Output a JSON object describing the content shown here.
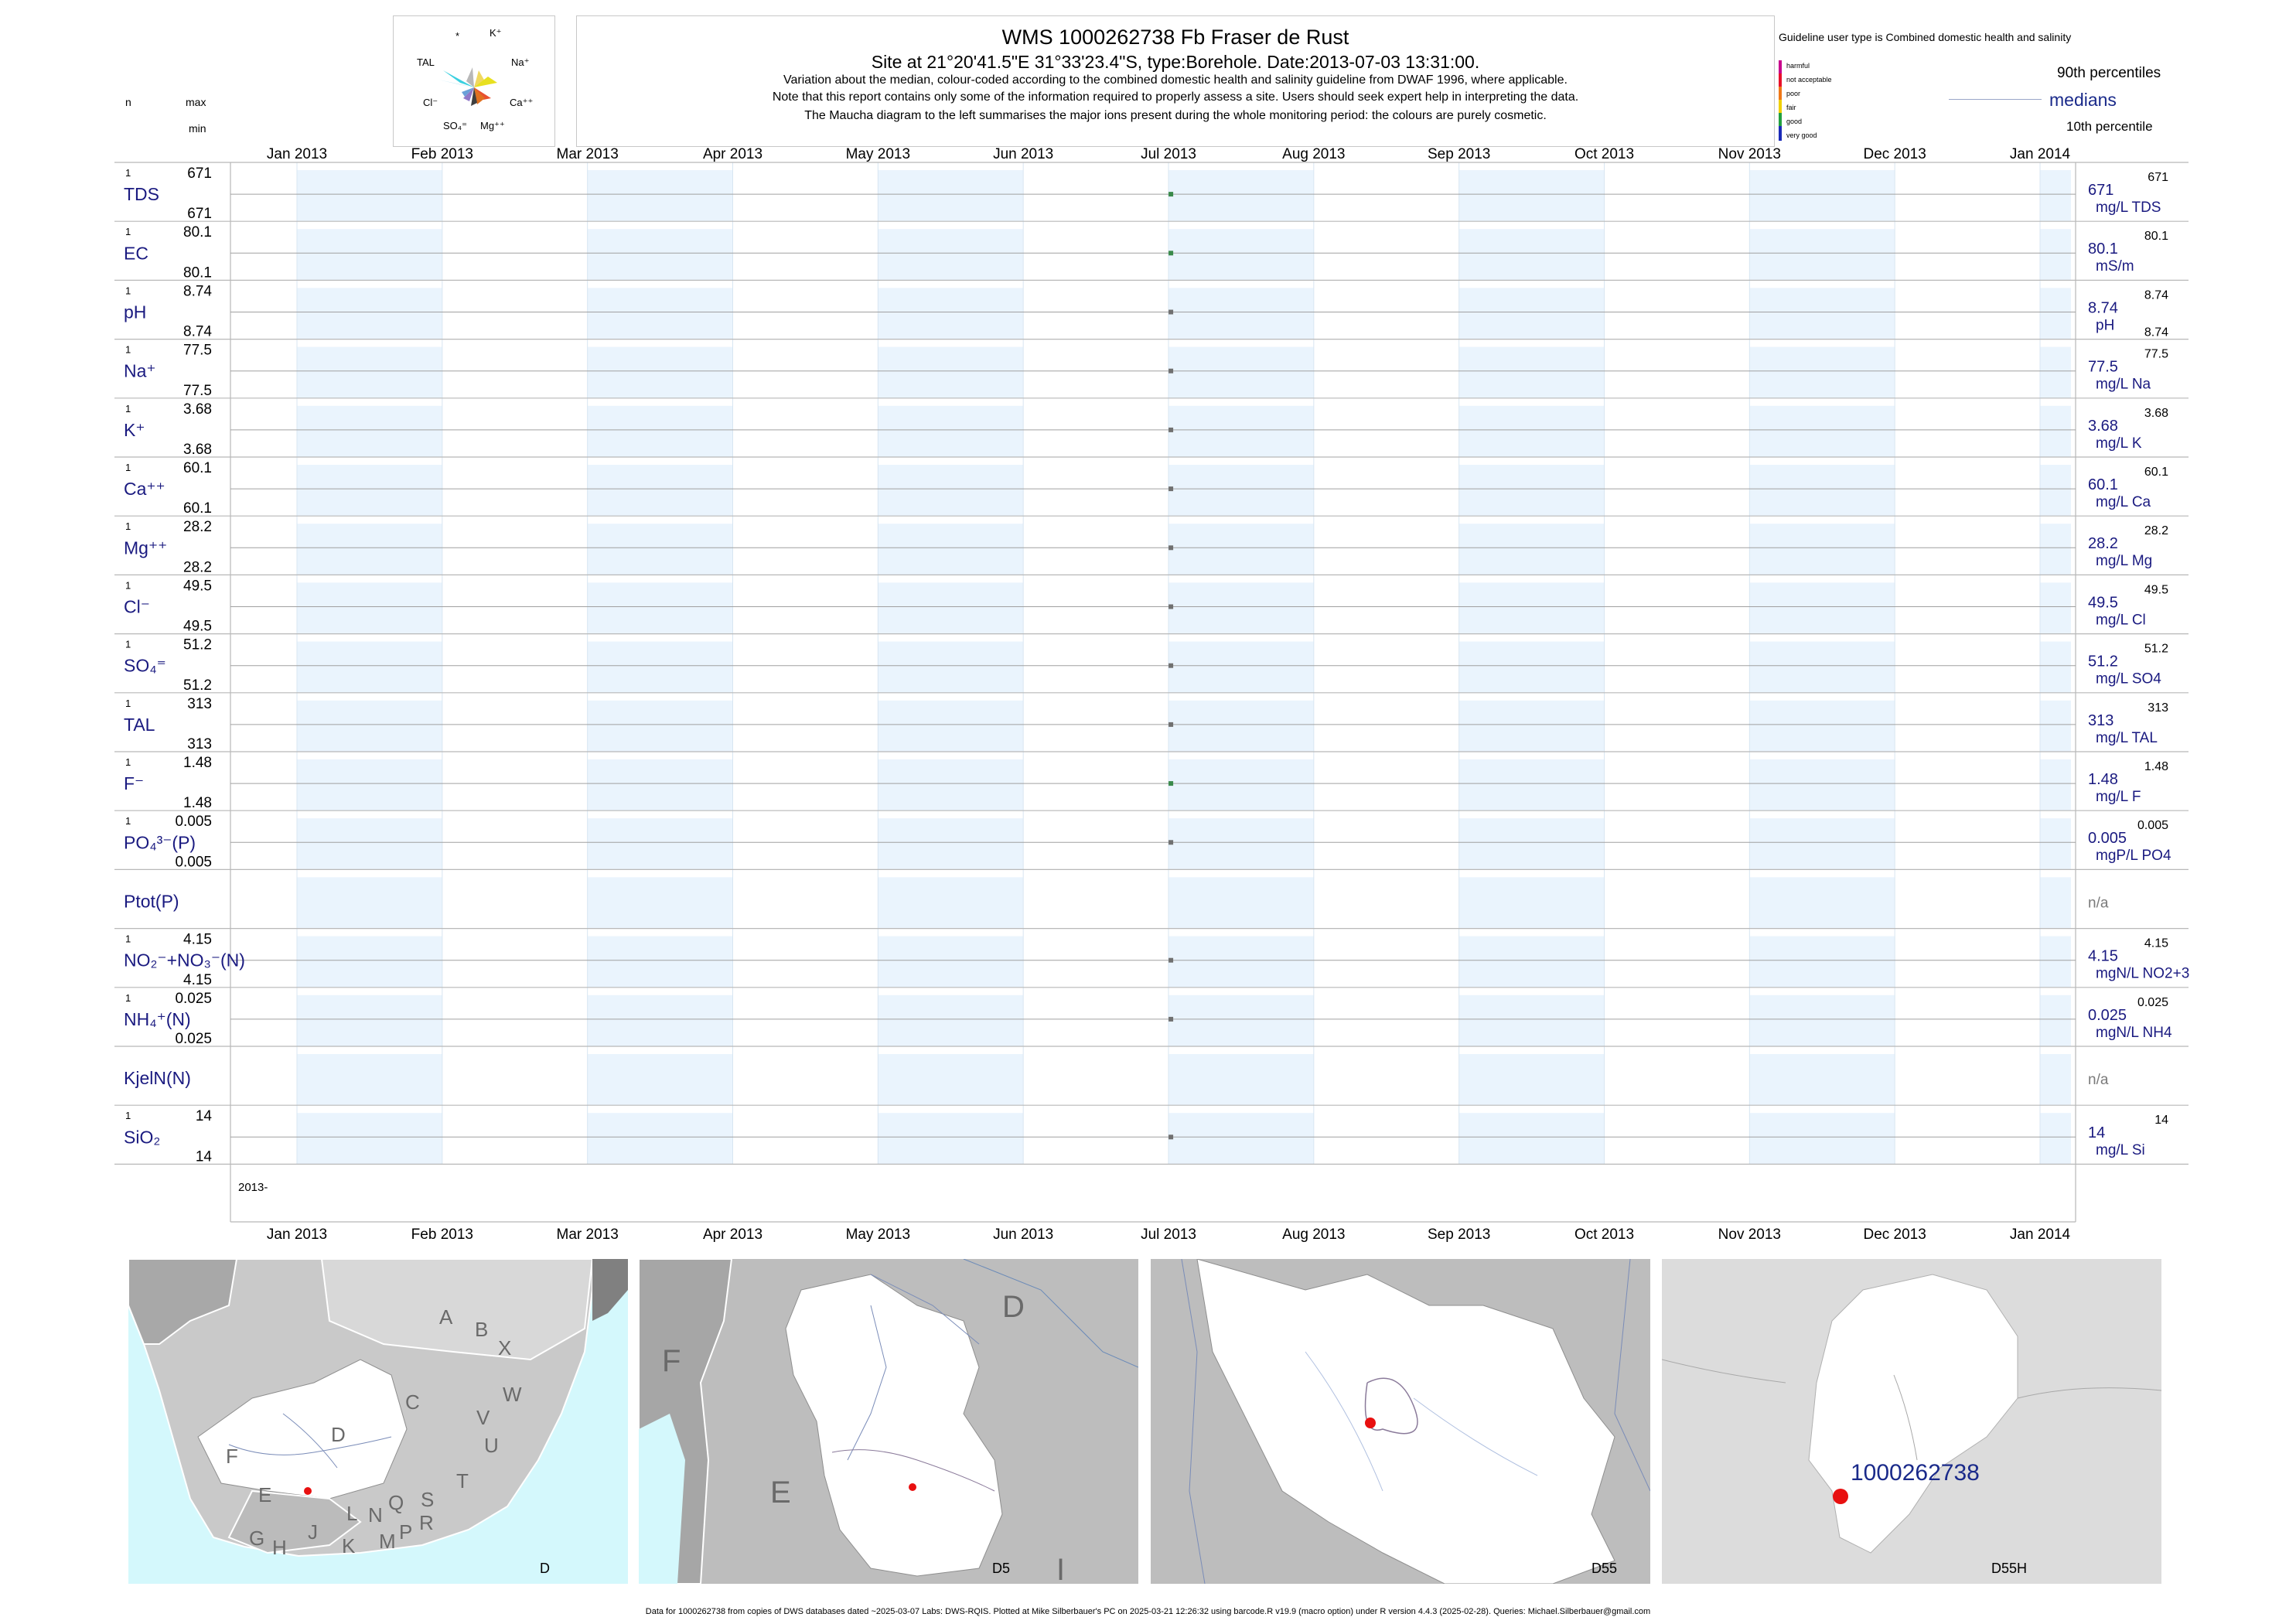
{
  "header": {
    "title": "WMS 1000262738  Fb Fraser de Rust",
    "subtitle": "Site at 21°20'41.5\"E 31°33'23.4\"S, type:Borehole. Date:2013-07-03 13:31:00.",
    "note1": "Variation about the median,  colour-coded according to the combined domestic health and salinity guideline from DWAF 1996, where applicable.",
    "note2": "Note that this report contains only some of the information required to properly assess a site. Users should seek expert help in interpreting the data.",
    "note3": "The Maucha diagram to the left summarises the major ions present during the whole monitoring period: the colours are purely cosmetic."
  },
  "left_header": {
    "n": "n",
    "max": "max",
    "min": "min"
  },
  "maucha": {
    "labels": [
      "*",
      "K⁺",
      "TAL",
      "Na⁺",
      "Cl⁻",
      "Ca⁺⁺",
      "SO₄⁼",
      "Mg⁺⁺"
    ]
  },
  "legend": {
    "guideline": "Guideline user type is Combined domestic health and salinity",
    "classes": [
      "harmful",
      "not acceptable",
      "poor",
      "fair",
      "good",
      "very good"
    ],
    "class_colors": [
      "#c8008c",
      "#e8102a",
      "#f07818",
      "#f0d000",
      "#22a040",
      "#1a2ab8"
    ],
    "p90": "90th percentiles",
    "medians": "medians",
    "p10": "10th percentile"
  },
  "chart_data": {
    "type": "scatter",
    "x_axis_ticks": [
      "Jan 2013",
      "Feb 2013",
      "Mar 2013",
      "Apr 2013",
      "May 2013",
      "Jun 2013",
      "Jul 2013",
      "Aug 2013",
      "Sep 2013",
      "Oct 2013",
      "Nov 2013",
      "Dec 2013",
      "Jan 2014"
    ],
    "year_label": "2013-",
    "sample_date": "2013-07-03",
    "rows": [
      {
        "label": "TDS",
        "n": "1",
        "max": "671",
        "min": "671",
        "median": "671",
        "unit": "mg/L TDS",
        "p90": "671",
        "p10": "",
        "color": "#3a8a4a"
      },
      {
        "label": "EC",
        "n": "1",
        "max": "80.1",
        "min": "80.1",
        "median": "80.1",
        "unit": "mS/m",
        "p90": "80.1",
        "p10": "",
        "color": "#3a8a4a"
      },
      {
        "label": "pH",
        "n": "1",
        "max": "8.74",
        "min": "8.74",
        "median": "8.74",
        "unit": "pH",
        "p90": "8.74",
        "p10": "8.74",
        "color": "#707070"
      },
      {
        "label": "Na⁺",
        "n": "1",
        "max": "77.5",
        "min": "77.5",
        "median": "77.5",
        "unit": "mg/L Na",
        "p90": "77.5",
        "p10": "",
        "color": "#707070"
      },
      {
        "label": "K⁺",
        "n": "1",
        "max": "3.68",
        "min": "3.68",
        "median": "3.68",
        "unit": "mg/L K",
        "p90": "3.68",
        "p10": "",
        "color": "#707070"
      },
      {
        "label": "Ca⁺⁺",
        "n": "1",
        "max": "60.1",
        "min": "60.1",
        "median": "60.1",
        "unit": "mg/L Ca",
        "p90": "60.1",
        "p10": "",
        "color": "#707070"
      },
      {
        "label": "Mg⁺⁺",
        "n": "1",
        "max": "28.2",
        "min": "28.2",
        "median": "28.2",
        "unit": "mg/L Mg",
        "p90": "28.2",
        "p10": "",
        "color": "#707070"
      },
      {
        "label": "Cl⁻",
        "n": "1",
        "max": "49.5",
        "min": "49.5",
        "median": "49.5",
        "unit": "mg/L Cl",
        "p90": "49.5",
        "p10": "",
        "color": "#707070"
      },
      {
        "label": "SO₄⁼",
        "n": "1",
        "max": "51.2",
        "min": "51.2",
        "median": "51.2",
        "unit": "mg/L SO4",
        "p90": "51.2",
        "p10": "",
        "color": "#707070"
      },
      {
        "label": "TAL",
        "n": "1",
        "max": "313",
        "min": "313",
        "median": "313",
        "unit": "mg/L TAL",
        "p90": "313",
        "p10": "",
        "color": "#707070"
      },
      {
        "label": "F⁻",
        "n": "1",
        "max": "1.48",
        "min": "1.48",
        "median": "1.48",
        "unit": "mg/L F",
        "p90": "1.48",
        "p10": "",
        "color": "#3a8a4a"
      },
      {
        "label": "PO₄³⁻(P)",
        "n": "1",
        "max": "0.005",
        "min": "0.005",
        "median": "0.005",
        "unit": "mgP/L PO4",
        "p90": "0.005",
        "p10": "",
        "color": "#707070"
      },
      {
        "label": "Ptot(P)",
        "n": "",
        "max": "",
        "min": "",
        "median": "n/a",
        "unit": "",
        "p90": "",
        "p10": "",
        "color": ""
      },
      {
        "label": "NO₂⁻+NO₃⁻(N)",
        "n": "1",
        "max": "4.15",
        "min": "4.15",
        "median": "4.15",
        "unit": "mgN/L NO2+3",
        "p90": "4.15",
        "p10": "",
        "color": "#707070"
      },
      {
        "label": "NH₄⁺(N)",
        "n": "1",
        "max": "0.025",
        "min": "0.025",
        "median": "0.025",
        "unit": "mgN/L NH4",
        "p90": "0.025",
        "p10": "",
        "color": "#707070"
      },
      {
        "label": "KjelN(N)",
        "n": "",
        "max": "",
        "min": "",
        "median": "n/a",
        "unit": "",
        "p90": "",
        "p10": "",
        "color": ""
      },
      {
        "label": "SiO₂",
        "n": "1",
        "max": "14",
        "min": "14",
        "median": "14",
        "unit": "mg/L Si",
        "p90": "14",
        "p10": "",
        "color": "#707070"
      }
    ]
  },
  "maps": [
    {
      "caption": "D",
      "letters": [
        "A",
        "B",
        "X",
        "W",
        "C",
        "V",
        "U",
        "T",
        "D",
        "F",
        "E",
        "G",
        "H",
        "J",
        "K",
        "L",
        "M",
        "N",
        "P",
        "Q",
        "R",
        "S"
      ]
    },
    {
      "caption": "D5",
      "letters": [
        "D",
        "F",
        "E",
        "I"
      ]
    },
    {
      "caption": "D55",
      "letters": []
    },
    {
      "caption": "D55H",
      "site_label": "1000262738"
    }
  ],
  "footer": "Data for 1000262738 from copies of DWS databases dated ~2025-03-07 Labs: DWS-RQIS. Plotted at Mike Silberbauer's PC on 2025-03-21 12:26:32 using barcode.R v19.9 (macro option) under R version 4.4.3 (2025-02-28). Queries: Michael.Silberbauer@gmail.com"
}
